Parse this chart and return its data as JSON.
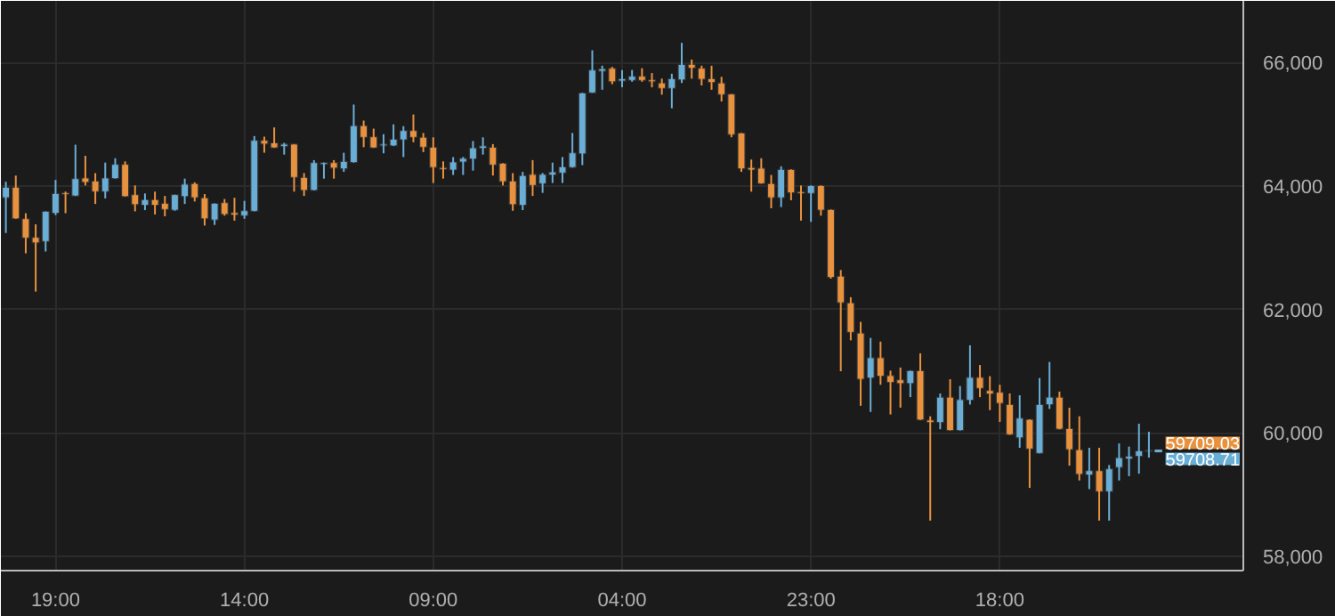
{
  "chart_data": {
    "type": "candlestick",
    "categories": [
      null,
      null,
      null,
      null,
      null,
      "19:00",
      null,
      null,
      null,
      null,
      null,
      null,
      null,
      null,
      null,
      null,
      null,
      null,
      null,
      null,
      null,
      null,
      null,
      null,
      "14:00",
      null,
      null,
      null,
      null,
      null,
      null,
      null,
      null,
      null,
      null,
      null,
      null,
      null,
      null,
      null,
      null,
      null,
      null,
      "09:00",
      null,
      null,
      null,
      null,
      null,
      null,
      null,
      null,
      null,
      null,
      null,
      null,
      null,
      null,
      null,
      null,
      null,
      null,
      "04:00",
      null,
      null,
      null,
      null,
      null,
      null,
      null,
      null,
      null,
      null,
      null,
      null,
      null,
      null,
      null,
      null,
      null,
      null,
      "23:00",
      null,
      null,
      null,
      null,
      null,
      null,
      null,
      null,
      null,
      null,
      null,
      null,
      null,
      null,
      null,
      null,
      null,
      null,
      "18:00",
      null,
      null,
      null,
      null,
      null,
      null,
      null,
      null,
      null,
      null,
      null,
      null,
      null,
      null,
      null,
      null,
      null,
      null,
      null,
      null,
      null,
      null,
      null,
      null
    ],
    "ohlc": [
      [
        63810,
        64070,
        63240,
        63980
      ],
      [
        63980,
        64170,
        63470,
        63470
      ],
      [
        63470,
        63560,
        62910,
        63160
      ],
      [
        63170,
        63380,
        62290,
        63080
      ],
      [
        63100,
        63590,
        62940,
        63590
      ],
      [
        63560,
        64100,
        63530,
        63880
      ],
      [
        63890,
        63910,
        63560,
        63860
      ],
      [
        63840,
        64670,
        63840,
        64120
      ],
      [
        64130,
        64490,
        64010,
        64060
      ],
      [
        64080,
        64210,
        63710,
        63910
      ],
      [
        63910,
        64380,
        63800,
        64130
      ],
      [
        64120,
        64450,
        64120,
        64350
      ],
      [
        64350,
        64400,
        63830,
        63830
      ],
      [
        63860,
        64010,
        63590,
        63700
      ],
      [
        63690,
        63880,
        63610,
        63780
      ],
      [
        63780,
        63910,
        63540,
        63690
      ],
      [
        63720,
        63840,
        63510,
        63620
      ],
      [
        63610,
        63860,
        63600,
        63860
      ],
      [
        63830,
        64120,
        63710,
        64030
      ],
      [
        64040,
        64060,
        63750,
        63810
      ],
      [
        63810,
        63870,
        63360,
        63470
      ],
      [
        63450,
        63720,
        63370,
        63720
      ],
      [
        63730,
        63790,
        63520,
        63540
      ],
      [
        63570,
        63810,
        63440,
        63530
      ],
      [
        63520,
        63760,
        63470,
        63600
      ],
      [
        63590,
        64810,
        63590,
        64740
      ],
      [
        64740,
        64800,
        64540,
        64680
      ],
      [
        64700,
        64950,
        64620,
        64620
      ],
      [
        64640,
        64700,
        64510,
        64680
      ],
      [
        64680,
        64680,
        63910,
        64140
      ],
      [
        64140,
        64210,
        63840,
        63930
      ],
      [
        63930,
        64420,
        63930,
        64380
      ],
      [
        64350,
        64380,
        64120,
        64380
      ],
      [
        64380,
        64420,
        64120,
        64290
      ],
      [
        64280,
        64540,
        64230,
        64400
      ],
      [
        64380,
        65320,
        64380,
        64980
      ],
      [
        64980,
        65060,
        64630,
        64790
      ],
      [
        64800,
        64930,
        64620,
        64620
      ],
      [
        64650,
        64840,
        64530,
        64680
      ],
      [
        64650,
        65000,
        64650,
        64760
      ],
      [
        64750,
        64970,
        64470,
        64900
      ],
      [
        64900,
        65160,
        64710,
        64790
      ],
      [
        64790,
        64860,
        64550,
        64630
      ],
      [
        64630,
        64790,
        64050,
        64300
      ],
      [
        64300,
        64400,
        64120,
        64270
      ],
      [
        64260,
        64470,
        64180,
        64390
      ],
      [
        64390,
        64470,
        64180,
        64450
      ],
      [
        64440,
        64730,
        64250,
        64620
      ],
      [
        64610,
        64790,
        64510,
        64650
      ],
      [
        64630,
        64680,
        64170,
        64340
      ],
      [
        64370,
        64370,
        64010,
        64070
      ],
      [
        64080,
        64210,
        63600,
        63700
      ],
      [
        63690,
        64230,
        63610,
        64170
      ],
      [
        64190,
        64420,
        63840,
        64010
      ],
      [
        64040,
        64210,
        63890,
        64190
      ],
      [
        64180,
        64380,
        64050,
        64230
      ],
      [
        64210,
        64470,
        64050,
        64310
      ],
      [
        64300,
        64860,
        64300,
        64540
      ],
      [
        64520,
        65510,
        64340,
        65510
      ],
      [
        65510,
        66200,
        65510,
        65880
      ],
      [
        65860,
        65950,
        65560,
        65900
      ],
      [
        65910,
        65930,
        65650,
        65690
      ],
      [
        65700,
        65880,
        65600,
        65740
      ],
      [
        65710,
        65880,
        65690,
        65780
      ],
      [
        65780,
        65910,
        65690,
        65710
      ],
      [
        65720,
        65830,
        65600,
        65690
      ],
      [
        65670,
        65740,
        65480,
        65580
      ],
      [
        65580,
        65820,
        65260,
        65740
      ],
      [
        65720,
        66320,
        65670,
        65970
      ],
      [
        65970,
        66050,
        65740,
        65910
      ],
      [
        65910,
        65950,
        65630,
        65730
      ],
      [
        65740,
        65950,
        65560,
        65680
      ],
      [
        65670,
        65770,
        65370,
        65480
      ],
      [
        65490,
        65490,
        64790,
        64830
      ],
      [
        64860,
        64860,
        64230,
        64280
      ],
      [
        64300,
        64430,
        63910,
        64260
      ],
      [
        64290,
        64450,
        64040,
        64040
      ],
      [
        64040,
        64180,
        63640,
        63810
      ],
      [
        63810,
        64320,
        63660,
        64270
      ],
      [
        64270,
        64270,
        63770,
        63890
      ],
      [
        63910,
        64010,
        63440,
        63880
      ],
      [
        63880,
        64010,
        63420,
        64010
      ],
      [
        64010,
        64010,
        63520,
        63610
      ],
      [
        63620,
        63620,
        62500,
        62520
      ],
      [
        62540,
        62640,
        61000,
        62110
      ],
      [
        62110,
        62200,
        61500,
        61630
      ],
      [
        61620,
        61800,
        60440,
        60870
      ],
      [
        60890,
        61540,
        60340,
        61220
      ],
      [
        61220,
        61480,
        60780,
        60920
      ],
      [
        60930,
        61010,
        60300,
        60820
      ],
      [
        60860,
        61060,
        60410,
        60800
      ],
      [
        60800,
        61010,
        60580,
        61010
      ],
      [
        61010,
        61290,
        60210,
        60210
      ],
      [
        60210,
        60270,
        58580,
        60170
      ],
      [
        60170,
        60640,
        60060,
        60580
      ],
      [
        60580,
        60870,
        60040,
        60040
      ],
      [
        60040,
        60760,
        60040,
        60540
      ],
      [
        60530,
        61420,
        60460,
        60900
      ],
      [
        60900,
        61100,
        60580,
        60720
      ],
      [
        60690,
        60920,
        60370,
        60630
      ],
      [
        60660,
        60780,
        60180,
        60480
      ],
      [
        60460,
        60640,
        59970,
        59970
      ],
      [
        59920,
        60610,
        59760,
        60240
      ],
      [
        60220,
        60220,
        59110,
        59740
      ],
      [
        59670,
        60890,
        59670,
        60460
      ],
      [
        60460,
        61150,
        60390,
        60580
      ],
      [
        60580,
        60670,
        60060,
        60060
      ],
      [
        60070,
        60410,
        59470,
        59730
      ],
      [
        59730,
        60270,
        59230,
        59330
      ],
      [
        59320,
        59760,
        59090,
        59390
      ],
      [
        59390,
        59760,
        58580,
        59050
      ],
      [
        59050,
        59480,
        58580,
        59420
      ],
      [
        59440,
        59830,
        59230,
        59600
      ],
      [
        59580,
        59780,
        59300,
        59620
      ],
      [
        59620,
        60150,
        59340,
        59710
      ],
      [
        59700,
        60020,
        59600,
        59720
      ],
      null,
      null,
      null,
      null,
      null,
      null,
      null,
      null,
      null
    ],
    "colors": [
      "#6aaed6",
      "#e8923f",
      "#e8923f",
      "#e8923f",
      "#6aaed6",
      "#6aaed6",
      "#e8923f",
      "#6aaed6",
      "#e8923f",
      "#e8923f",
      "#6aaed6",
      "#6aaed6",
      "#e8923f",
      "#e8923f",
      "#6aaed6",
      "#e8923f",
      "#e8923f",
      "#6aaed6",
      "#6aaed6",
      "#e8923f",
      "#e8923f",
      "#6aaed6",
      "#e8923f",
      "#e8923f",
      "#6aaed6",
      "#6aaed6",
      "#e8923f",
      "#e8923f",
      "#6aaed6",
      "#e8923f",
      "#e8923f",
      "#6aaed6",
      "#6aaed6",
      "#e8923f",
      "#6aaed6",
      "#6aaed6",
      "#e8923f",
      "#e8923f",
      "#6aaed6",
      "#6aaed6",
      "#6aaed6",
      "#e8923f",
      "#e8923f",
      "#e8923f",
      "#e8923f",
      "#6aaed6",
      "#6aaed6",
      "#6aaed6",
      "#6aaed6",
      "#e8923f",
      "#e8923f",
      "#e8923f",
      "#6aaed6",
      "#e8923f",
      "#6aaed6",
      "#6aaed6",
      "#6aaed6",
      "#6aaed6",
      "#6aaed6",
      "#6aaed6",
      "#6aaed6",
      "#e8923f",
      "#6aaed6",
      "#6aaed6",
      "#e8923f",
      "#e8923f",
      "#e8923f",
      "#6aaed6",
      "#6aaed6",
      "#e8923f",
      "#e8923f",
      "#e8923f",
      "#e8923f",
      "#e8923f",
      "#e8923f",
      "#e8923f",
      "#e8923f",
      "#e8923f",
      "#6aaed6",
      "#e8923f",
      "#e8923f",
      "#6aaed6",
      "#e8923f",
      "#e8923f",
      "#e8923f",
      "#e8923f",
      "#e8923f",
      "#6aaed6",
      "#e8923f",
      "#e8923f",
      "#e8923f",
      "#6aaed6",
      "#e8923f",
      "#e8923f",
      "#6aaed6",
      "#e8923f",
      "#6aaed6",
      "#6aaed6",
      "#e8923f",
      "#e8923f",
      "#e8923f",
      "#e8923f",
      "#6aaed6",
      "#e8923f",
      "#6aaed6",
      "#6aaed6",
      "#e8923f",
      "#e8923f",
      "#e8923f",
      "#6aaed6",
      "#e8923f",
      "#6aaed6",
      "#6aaed6",
      "#6aaed6",
      "#6aaed6",
      "#6aaed6",
      null,
      null,
      null,
      null,
      null,
      null,
      null,
      null,
      null
    ],
    "ylim": [
      57770,
      67000
    ],
    "yticks": [
      {
        "value": 58000,
        "label": "58,000"
      },
      {
        "value": 60000,
        "label": "60,000"
      },
      {
        "value": 62000,
        "label": "62,000"
      },
      {
        "value": 64000,
        "label": "64,000"
      },
      {
        "value": 66000,
        "label": "66,000"
      }
    ],
    "grid": true,
    "ref_lines": [
      {
        "axis": "y",
        "value": 59709.03,
        "label": "59709.03",
        "color": "#e8923f",
        "line_style": "dashed"
      },
      {
        "axis": "y",
        "value": 59708.71,
        "label": "59708.71",
        "color": "#6aaed6",
        "line_style": "dashed"
      }
    ]
  }
}
